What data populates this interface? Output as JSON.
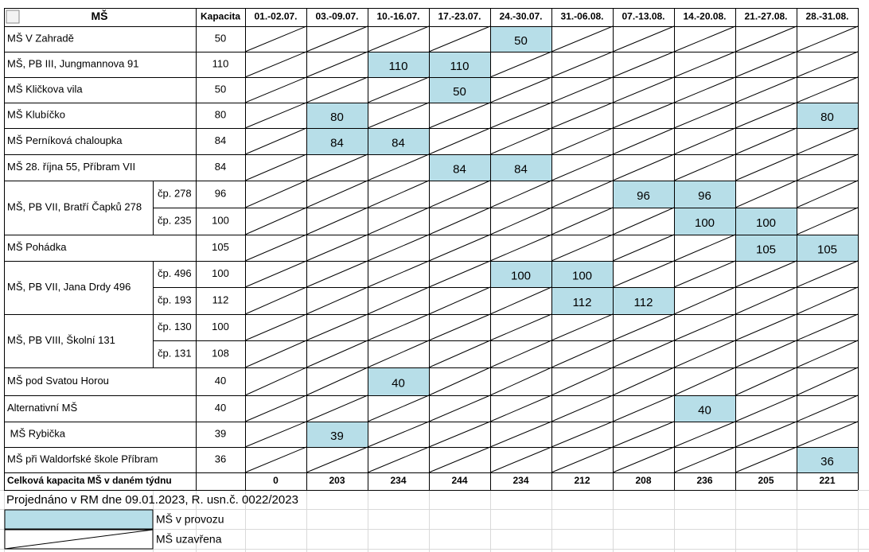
{
  "header": {
    "name_col": "MŠ",
    "capacity_col": "Kapacita",
    "weeks": [
      "01.-02.07.",
      "03.-09.07.",
      "10.-16.07.",
      "17.-23.07.",
      "24.-30.07.",
      "31.-06.08.",
      "07.-13.08.",
      "14.-20.08.",
      "21.-27.08.",
      "28.-31.08."
    ]
  },
  "rows": [
    {
      "name": "MŠ V Zahradě",
      "capacity": 50,
      "weeks": [
        null,
        null,
        null,
        null,
        50,
        null,
        null,
        null,
        null,
        null
      ]
    },
    {
      "name": "MŠ, PB III, Jungmannova 91",
      "capacity": 110,
      "weeks": [
        null,
        null,
        110,
        110,
        null,
        null,
        null,
        null,
        null,
        null
      ]
    },
    {
      "name": "MŠ Kličkova vila",
      "capacity": 50,
      "weeks": [
        null,
        null,
        null,
        50,
        null,
        null,
        null,
        null,
        null,
        null
      ]
    },
    {
      "name": "MŠ Klubíčko",
      "capacity": 80,
      "weeks": [
        null,
        80,
        null,
        null,
        null,
        null,
        null,
        null,
        null,
        80
      ]
    },
    {
      "name": "MŠ Perníková chaloupka",
      "capacity": 84,
      "weeks": [
        null,
        84,
        84,
        null,
        null,
        null,
        null,
        null,
        null,
        null
      ]
    },
    {
      "name": "MŠ 28. října 55, Příbram VII",
      "capacity": 84,
      "weeks": [
        null,
        null,
        null,
        84,
        84,
        null,
        null,
        null,
        null,
        null
      ]
    },
    {
      "name": "MŠ, PB VII, Bratří Čapků 278",
      "units": [
        {
          "label": "čp. 278",
          "capacity": 96,
          "weeks": [
            null,
            null,
            null,
            null,
            null,
            null,
            96,
            96,
            null,
            null
          ]
        },
        {
          "label": "čp. 235",
          "capacity": 100,
          "weeks": [
            null,
            null,
            null,
            null,
            null,
            null,
            null,
            100,
            100,
            null
          ]
        }
      ]
    },
    {
      "name": "MŠ Pohádka",
      "capacity": 105,
      "weeks": [
        null,
        null,
        null,
        null,
        null,
        null,
        null,
        null,
        105,
        105
      ]
    },
    {
      "name": "MŠ, PB VII, Jana Drdy 496",
      "units": [
        {
          "label": "čp. 496",
          "capacity": 100,
          "weeks": [
            null,
            null,
            null,
            null,
            100,
            100,
            null,
            null,
            null,
            null
          ]
        },
        {
          "label": "čp. 193",
          "capacity": 112,
          "weeks": [
            null,
            null,
            null,
            null,
            null,
            112,
            112,
            null,
            null,
            null
          ]
        }
      ]
    },
    {
      "name": "MŠ, PB VIII, Školní 131",
      "units": [
        {
          "label": "čp. 130",
          "capacity": 100,
          "weeks": [
            null,
            null,
            null,
            null,
            null,
            null,
            null,
            null,
            null,
            null
          ]
        },
        {
          "label": "čp. 131",
          "capacity": 108,
          "weeks": [
            null,
            null,
            null,
            null,
            null,
            null,
            null,
            null,
            null,
            null
          ]
        }
      ]
    },
    {
      "name": "MŠ pod Svatou Horou",
      "capacity": 40,
      "weeks": [
        null,
        null,
        40,
        null,
        null,
        null,
        null,
        null,
        null,
        null
      ]
    },
    {
      "name": "Alternativní MŠ",
      "capacity": 40,
      "weeks": [
        null,
        null,
        null,
        null,
        null,
        null,
        null,
        40,
        null,
        null
      ]
    },
    {
      "name": " MŠ Rybička",
      "capacity": 39,
      "weeks": [
        null,
        39,
        null,
        null,
        null,
        null,
        null,
        null,
        null,
        null
      ]
    },
    {
      "name": "MŠ při Waldorfské škole Příbram",
      "capacity": 36,
      "weeks": [
        null,
        null,
        null,
        null,
        null,
        null,
        null,
        null,
        null,
        36
      ]
    }
  ],
  "total": {
    "label": "Celková kapacita MŠ v daném týdnu",
    "values": [
      0,
      203,
      234,
      244,
      234,
      212,
      208,
      236,
      205,
      221
    ]
  },
  "note": "Projednáno v RM dne 09.01.2023, R. usn.č. 0022/2023",
  "legend": {
    "open": "MŠ v provozu",
    "closed": "MŠ uzavřena"
  }
}
